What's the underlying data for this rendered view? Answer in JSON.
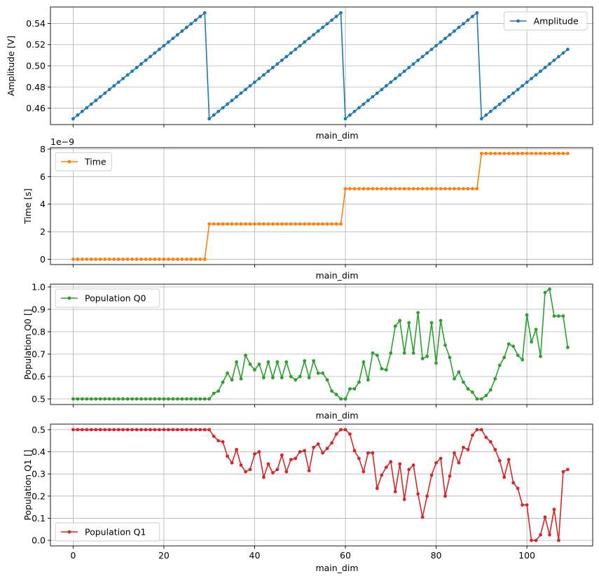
{
  "chart_data": [
    {
      "type": "line",
      "ylabel": "Amplitude [V]",
      "xlabel": "main_dim",
      "xlim": [
        -5,
        114.5
      ],
      "ylim": [
        0.4445,
        0.5555
      ],
      "xticks": [
        0,
        20,
        40,
        60,
        80,
        100
      ],
      "yticks": [
        0.46,
        0.48,
        0.5,
        0.52,
        0.54
      ],
      "ytick_labels": [
        "0.46",
        "0.48",
        "0.50",
        "0.52",
        "0.54"
      ],
      "show_x_tick_labels": false,
      "grid": true,
      "legend_position": "upper right",
      "series": [
        {
          "name": "Amplitude",
          "color": "#1f77b4",
          "generator": "sawtooth",
          "x_start": 0,
          "count": 110,
          "period": 30,
          "y_min": 0.45,
          "y_max": 0.55
        }
      ]
    },
    {
      "type": "line",
      "ylabel": "Time [s]",
      "xlabel": "main_dim",
      "xlim": [
        -5,
        114.5
      ],
      "ylim": [
        -0.385,
        8.1
      ],
      "offset_text": "1e−9",
      "xticks": [
        0,
        20,
        40,
        60,
        80,
        100
      ],
      "yticks": [
        0,
        2,
        4,
        6,
        8
      ],
      "ytick_labels": [
        "0",
        "2",
        "4",
        "6",
        "8"
      ],
      "show_x_tick_labels": false,
      "grid": true,
      "legend_position": "upper left",
      "series": [
        {
          "name": "Time",
          "color": "#ff7f0e",
          "generator": "steps",
          "x_start": 0,
          "count": 110,
          "period": 30,
          "levels": [
            0,
            2.56,
            5.12,
            7.68
          ]
        }
      ]
    },
    {
      "type": "line",
      "ylabel": "Population Q0 []",
      "xlabel": "main_dim",
      "xlim": [
        -5,
        114.5
      ],
      "ylim": [
        0.475,
        1.0125
      ],
      "xticks": [
        0,
        20,
        40,
        60,
        80,
        100
      ],
      "yticks": [
        0.5,
        0.6,
        0.7,
        0.8,
        0.9,
        1.0
      ],
      "ytick_labels": [
        "0.5",
        "0.6",
        "0.7",
        "0.8",
        "0.9",
        "1.0"
      ],
      "show_x_tick_labels": false,
      "grid": true,
      "legend_position": "upper left",
      "series": [
        {
          "name": "Population Q0",
          "color": "#2ca02c",
          "x_start": 0,
          "values": [
            0.5,
            0.5,
            0.5,
            0.5,
            0.5,
            0.5,
            0.5,
            0.5,
            0.5,
            0.5,
            0.5,
            0.5,
            0.5,
            0.5,
            0.5,
            0.5,
            0.5,
            0.5,
            0.5,
            0.5,
            0.5,
            0.5,
            0.5,
            0.5,
            0.5,
            0.5,
            0.5,
            0.5,
            0.5,
            0.5,
            0.5,
            0.525,
            0.535,
            0.575,
            0.615,
            0.585,
            0.665,
            0.59,
            0.695,
            0.655,
            0.63,
            0.655,
            0.595,
            0.665,
            0.595,
            0.665,
            0.595,
            0.665,
            0.6,
            0.585,
            0.6,
            0.67,
            0.595,
            0.67,
            0.615,
            0.615,
            0.585,
            0.535,
            0.52,
            0.5,
            0.5,
            0.545,
            0.545,
            0.575,
            0.665,
            0.585,
            0.705,
            0.695,
            0.635,
            0.63,
            0.705,
            0.825,
            0.85,
            0.705,
            0.84,
            0.705,
            0.885,
            0.68,
            0.69,
            0.84,
            0.66,
            0.85,
            0.74,
            0.685,
            0.59,
            0.62,
            0.575,
            0.545,
            0.53,
            0.5,
            0.5,
            0.515,
            0.54,
            0.59,
            0.65,
            0.685,
            0.745,
            0.735,
            0.695,
            0.675,
            0.875,
            0.755,
            0.81,
            0.69,
            0.975,
            0.99,
            0.87,
            0.87,
            0.87,
            0.73
          ]
        }
      ]
    },
    {
      "type": "line",
      "ylabel": "Population Q1 []",
      "xlabel": "main_dim",
      "xlim": [
        -5,
        114.5
      ],
      "ylim": [
        -0.025,
        0.525
      ],
      "xticks": [
        0,
        20,
        40,
        60,
        80,
        100
      ],
      "xtick_labels": [
        "0",
        "20",
        "40",
        "60",
        "80",
        "100"
      ],
      "yticks": [
        0.0,
        0.1,
        0.2,
        0.3,
        0.4,
        0.5
      ],
      "ytick_labels": [
        "0.0",
        "0.1",
        "0.2",
        "0.3",
        "0.4",
        "0.5"
      ],
      "show_x_tick_labels": true,
      "grid": true,
      "legend_position": "lower left",
      "series": [
        {
          "name": "Population Q1",
          "color": "#d62728",
          "x_start": 0,
          "values": [
            0.5,
            0.5,
            0.5,
            0.5,
            0.5,
            0.5,
            0.5,
            0.5,
            0.5,
            0.5,
            0.5,
            0.5,
            0.5,
            0.5,
            0.5,
            0.5,
            0.5,
            0.5,
            0.5,
            0.5,
            0.5,
            0.5,
            0.5,
            0.5,
            0.5,
            0.5,
            0.5,
            0.5,
            0.5,
            0.5,
            0.5,
            0.47,
            0.45,
            0.445,
            0.38,
            0.35,
            0.41,
            0.34,
            0.31,
            0.32,
            0.39,
            0.4,
            0.285,
            0.345,
            0.305,
            0.32,
            0.385,
            0.31,
            0.365,
            0.37,
            0.4,
            0.405,
            0.315,
            0.42,
            0.435,
            0.395,
            0.415,
            0.44,
            0.48,
            0.5,
            0.5,
            0.48,
            0.405,
            0.37,
            0.31,
            0.395,
            0.395,
            0.235,
            0.295,
            0.33,
            0.355,
            0.22,
            0.345,
            0.185,
            0.32,
            0.34,
            0.21,
            0.105,
            0.2,
            0.295,
            0.35,
            0.37,
            0.2,
            0.29,
            0.395,
            0.35,
            0.42,
            0.41,
            0.475,
            0.5,
            0.5,
            0.465,
            0.445,
            0.41,
            0.36,
            0.285,
            0.365,
            0.26,
            0.235,
            0.16,
            0.16,
            0.0,
            0.0,
            0.025,
            0.105,
            0.025,
            0.14,
            0.0,
            0.31,
            0.32
          ]
        }
      ]
    }
  ]
}
